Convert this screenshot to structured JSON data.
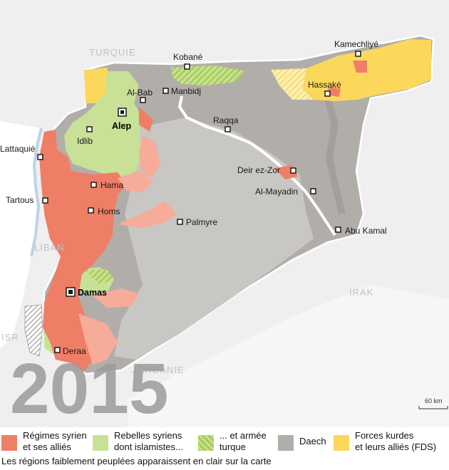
{
  "map": {
    "year": "2015",
    "scale": {
      "label": "60 km"
    },
    "countries": [
      {
        "key": "turquie",
        "label": "TURQUIE"
      },
      {
        "key": "liban",
        "label": "LIBAN"
      },
      {
        "key": "irak",
        "label": "IRAK"
      },
      {
        "key": "isr",
        "label": "ISR"
      },
      {
        "key": "jordanie",
        "label": "JORDANIE"
      }
    ],
    "cities": [
      {
        "key": "kamechliye",
        "label": "Kamechliyé"
      },
      {
        "key": "kobane",
        "label": "Kobané"
      },
      {
        "key": "hassake",
        "label": "Hassaké"
      },
      {
        "key": "al_bab",
        "label": "Al-Bab"
      },
      {
        "key": "manbidj",
        "label": "Manbidj"
      },
      {
        "key": "alep",
        "label": "Alep"
      },
      {
        "key": "raqqa",
        "label": "Raqqa"
      },
      {
        "key": "idlib",
        "label": "Idlib"
      },
      {
        "key": "lattaquie",
        "label": "Lattaquié"
      },
      {
        "key": "deir_ez_zor",
        "label": "Deir ez-Zor"
      },
      {
        "key": "hama",
        "label": "Hama"
      },
      {
        "key": "al_mayadin",
        "label": "Al-Mayadin"
      },
      {
        "key": "tartous",
        "label": "Tartous"
      },
      {
        "key": "homs",
        "label": "Homs"
      },
      {
        "key": "palmyre",
        "label": "Palmyre"
      },
      {
        "key": "abu_kamal",
        "label": "Abu Kamal"
      },
      {
        "key": "damas",
        "label": "Damas"
      },
      {
        "key": "deraa",
        "label": "Deraa"
      }
    ]
  },
  "legend": {
    "items": [
      {
        "key": "regime",
        "line1": "Régimes syrien",
        "line2": "et ses alliés",
        "color": "#ef7e67"
      },
      {
        "key": "rebels",
        "line1": "Rebelles syriens",
        "line2": "dont islamistes...",
        "color": "#c8e196"
      },
      {
        "key": "turkey",
        "line1": "... et armée",
        "line2": "turque",
        "color": "#a8cc55"
      },
      {
        "key": "daech",
        "line1": "Daech",
        "line2": "",
        "color": "#b1aeaa"
      },
      {
        "key": "kurds",
        "line1": "Forces kurdes",
        "line2": "et leurs alliés (FDS)",
        "color": "#fbd85c"
      }
    ],
    "footnote": "Les régions faiblement peuplées apparaissent en clair sur la carte"
  },
  "colors": {
    "regime": "#ef7e67",
    "rebels": "#c8e196",
    "daech": "#b1aeaa",
    "kurds": "#fbd85c",
    "neighbor": "#ededed"
  }
}
